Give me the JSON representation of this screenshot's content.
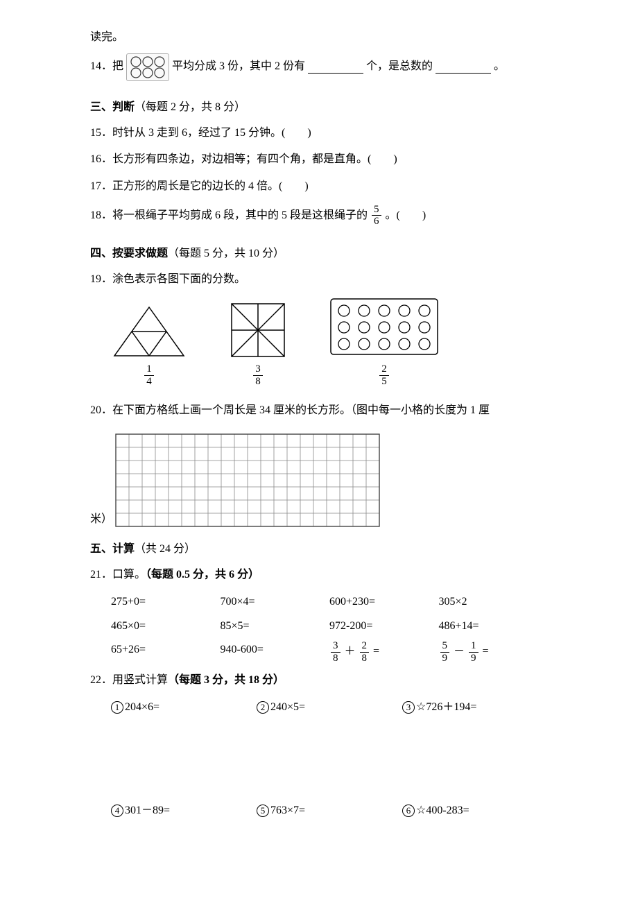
{
  "topline": "读完。",
  "q14": {
    "prefix": "14．把",
    "circles": {
      "rows": 2,
      "cols": 3,
      "radius": 7,
      "stroke": "#333333",
      "fill": "none"
    },
    "mid1": "平均分成 3 份，其中 2 份有",
    "mid2": "个，是总数的",
    "suffix": "。"
  },
  "sec3": {
    "title": "三、判断",
    "note": "（每题 2 分，共 8 分）"
  },
  "q15": "15．时针从 3 走到 6，经过了 15 分钟。(　　)",
  "q16": "16．长方形有四条边，对边相等；有四个角，都是直角。(　　)",
  "q17": "17．正方形的周长是它的边长的 4 倍。(　　)",
  "q18": {
    "pre": "18．将一根绳子平均剪成 6 段，其中的 5 段是这根绳子的",
    "frac": {
      "n": "5",
      "d": "6"
    },
    "post": " 。(　　)"
  },
  "sec4": {
    "title": "四、按要求做题",
    "note": "（每题 5 分，共 10 分）"
  },
  "q19": "19．涂色表示各图下面的分数。",
  "figures": {
    "triangle": {
      "frac": {
        "n": "1",
        "d": "4"
      },
      "stroke": "#000000"
    },
    "square": {
      "frac": {
        "n": "3",
        "d": "8"
      },
      "stroke": "#000000"
    },
    "circles15": {
      "frac": {
        "n": "2",
        "d": "5"
      },
      "rows": 3,
      "cols": 5,
      "radius": 8,
      "stroke": "#000000",
      "border": "#000000"
    }
  },
  "q20": {
    "pre": "20．在下面方格纸上画一个周长是 34 厘米的长方形。（图中每一小格的长度为 1 厘",
    "post": "米）"
  },
  "grid": {
    "cols": 20,
    "rows": 7,
    "cell": 19,
    "stroke": "#888888",
    "border": "#444444"
  },
  "sec5": {
    "title": "五、计算",
    "note": "（共 24 分）"
  },
  "q21": {
    "label": "21．口算。",
    "note": "（每题 0.5 分，共 6 分）"
  },
  "mental": [
    [
      "275+0=",
      "700×4=",
      "600+230=",
      "305×2"
    ],
    [
      "465×0=",
      "85×5=",
      "972-200=",
      "486+14="
    ],
    [
      "65+26=",
      "940-600=",
      {
        "type": "frac_add",
        "a": {
          "n": "3",
          "d": "8"
        },
        "b": {
          "n": "2",
          "d": "8"
        }
      },
      {
        "type": "frac_sub",
        "a": {
          "n": "5",
          "d": "9"
        },
        "b": {
          "n": "1",
          "d": "9"
        }
      }
    ]
  ],
  "q22": {
    "label": "22．用竖式计算",
    "note": "（每题 3 分，共 18 分）"
  },
  "vert1": [
    {
      "num": "1",
      "expr": "204×6="
    },
    {
      "num": "2",
      "expr": "240×5="
    },
    {
      "num": "3",
      "expr": "☆726＋194=",
      "star": true
    }
  ],
  "vert2": [
    {
      "num": "4",
      "expr": "301－89="
    },
    {
      "num": "5",
      "expr": "763×7="
    },
    {
      "num": "6",
      "expr": "☆400-283=",
      "star": true
    }
  ]
}
